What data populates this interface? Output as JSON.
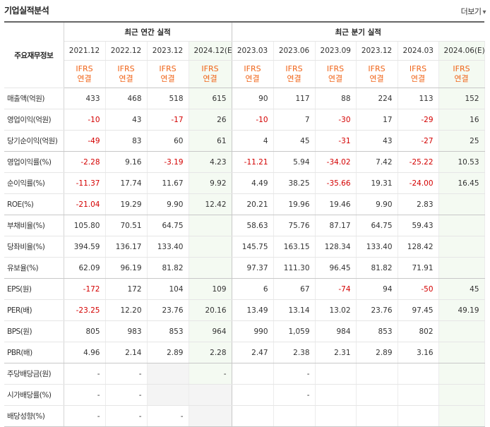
{
  "header": {
    "title": "기업실적분석",
    "more_label": "더보기",
    "more_arrow": "▾"
  },
  "table": {
    "corner_label": "주요재무정보",
    "group_annual": "최근 연간 실적",
    "group_quarter": "최근 분기 실적",
    "periods": [
      "2021.12",
      "2022.12",
      "2023.12",
      "2024.12(E)",
      "2023.03",
      "2023.06",
      "2023.09",
      "2023.12",
      "2024.03",
      "2024.06(E)"
    ],
    "std_top": "IFRS",
    "std_bottom": "연결",
    "rows": [
      {
        "label": "매출액(억원)",
        "values": [
          "433",
          "468",
          "518",
          "615",
          "90",
          "117",
          "88",
          "224",
          "113",
          "152"
        ]
      },
      {
        "label": "영업이익(억원)",
        "values": [
          "-10",
          "43",
          "-17",
          "26",
          "-10",
          "7",
          "-30",
          "17",
          "-29",
          "16"
        ]
      },
      {
        "label": "당기순이익(억원)",
        "values": [
          "-49",
          "83",
          "60",
          "61",
          "4",
          "45",
          "-31",
          "43",
          "-27",
          "25"
        ]
      },
      {
        "label": "영업이익률(%)",
        "values": [
          "-2.28",
          "9.16",
          "-3.19",
          "4.23",
          "-11.21",
          "5.94",
          "-34.02",
          "7.42",
          "-25.22",
          "10.53"
        ]
      },
      {
        "label": "순이익률(%)",
        "values": [
          "-11.37",
          "17.74",
          "11.67",
          "9.92",
          "4.49",
          "38.25",
          "-35.66",
          "19.31",
          "-24.00",
          "16.45"
        ]
      },
      {
        "label": "ROE(%)",
        "values": [
          "-21.04",
          "19.29",
          "9.90",
          "12.42",
          "20.21",
          "19.96",
          "19.46",
          "9.90",
          "2.83",
          ""
        ]
      },
      {
        "label": "부채비율(%)",
        "values": [
          "105.80",
          "70.51",
          "64.75",
          "",
          "58.63",
          "75.76",
          "87.17",
          "64.75",
          "59.43",
          ""
        ]
      },
      {
        "label": "당좌비율(%)",
        "values": [
          "394.59",
          "136.17",
          "133.40",
          "",
          "145.75",
          "163.15",
          "128.34",
          "133.40",
          "128.42",
          ""
        ]
      },
      {
        "label": "유보율(%)",
        "values": [
          "62.09",
          "96.19",
          "81.82",
          "",
          "97.37",
          "111.30",
          "96.45",
          "81.82",
          "71.91",
          ""
        ]
      },
      {
        "label": "EPS(원)",
        "values": [
          "-172",
          "172",
          "104",
          "109",
          "6",
          "67",
          "-74",
          "94",
          "-50",
          "45"
        ]
      },
      {
        "label": "PER(배)",
        "values": [
          "-23.25",
          "12.20",
          "23.76",
          "20.16",
          "13.49",
          "13.14",
          "13.02",
          "23.76",
          "97.45",
          "49.19"
        ]
      },
      {
        "label": "BPS(원)",
        "values": [
          "805",
          "983",
          "853",
          "964",
          "990",
          "1,059",
          "984",
          "853",
          "802",
          ""
        ]
      },
      {
        "label": "PBR(배)",
        "values": [
          "4.96",
          "2.14",
          "2.89",
          "2.28",
          "2.47",
          "2.38",
          "2.31",
          "2.89",
          "3.16",
          ""
        ]
      },
      {
        "label": "주당배당금(원)",
        "values": [
          "-",
          "-",
          "",
          "-",
          "",
          "-",
          "",
          "",
          "",
          ""
        ]
      },
      {
        "label": "시가배당률(%)",
        "values": [
          "-",
          "-",
          "",
          "",
          "",
          "-",
          "",
          "",
          "",
          ""
        ]
      },
      {
        "label": "배당성향(%)",
        "values": [
          "-",
          "-",
          "-",
          "",
          "",
          "",
          "",
          "",
          "",
          ""
        ]
      }
    ]
  }
}
